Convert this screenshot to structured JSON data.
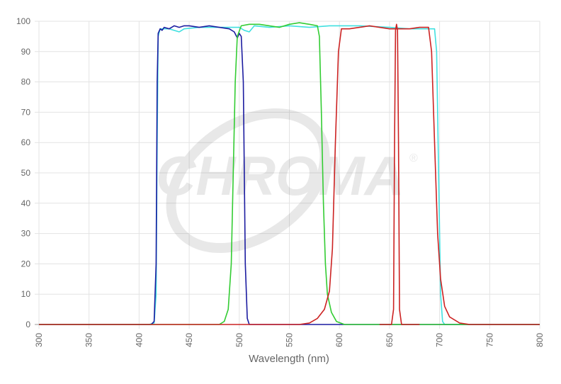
{
  "chart_data": {
    "type": "line",
    "title": "",
    "xlabel": "Wavelength (nm)",
    "ylabel": "",
    "xlim": [
      300,
      800
    ],
    "ylim": [
      0,
      100
    ],
    "xticks": [
      300,
      350,
      400,
      450,
      500,
      550,
      600,
      650,
      700,
      750,
      800
    ],
    "yticks": [
      0,
      10,
      20,
      30,
      40,
      50,
      60,
      70,
      80,
      90,
      100
    ],
    "grid": true,
    "legend": "none",
    "watermark": "CHROMA®",
    "series": [
      {
        "color": "#40e0e0",
        "points": [
          [
            300,
            0
          ],
          [
            410,
            0
          ],
          [
            415,
            0.5
          ],
          [
            417,
            10
          ],
          [
            418,
            60
          ],
          [
            419,
            95
          ],
          [
            421,
            97.5
          ],
          [
            430,
            97.5
          ],
          [
            440,
            96.5
          ],
          [
            445,
            97.5
          ],
          [
            460,
            98
          ],
          [
            480,
            98
          ],
          [
            500,
            98
          ],
          [
            505,
            97
          ],
          [
            510,
            96.5
          ],
          [
            515,
            98.5
          ],
          [
            530,
            98
          ],
          [
            550,
            98.5
          ],
          [
            570,
            98
          ],
          [
            590,
            98.5
          ],
          [
            620,
            98.5
          ],
          [
            650,
            98
          ],
          [
            670,
            97.5
          ],
          [
            690,
            97.5
          ],
          [
            695,
            97.5
          ],
          [
            697,
            90
          ],
          [
            699,
            50
          ],
          [
            701,
            10
          ],
          [
            703,
            1
          ],
          [
            705,
            0
          ],
          [
            800,
            0
          ]
        ]
      },
      {
        "color": "#1c1ca0",
        "points": [
          [
            300,
            0
          ],
          [
            412,
            0
          ],
          [
            415,
            1
          ],
          [
            417,
            20
          ],
          [
            418,
            80
          ],
          [
            419,
            96
          ],
          [
            421,
            97.5
          ],
          [
            423,
            97
          ],
          [
            425,
            98
          ],
          [
            430,
            97.5
          ],
          [
            435,
            98.5
          ],
          [
            440,
            98
          ],
          [
            445,
            98.5
          ],
          [
            450,
            98.5
          ],
          [
            460,
            98
          ],
          [
            470,
            98.5
          ],
          [
            480,
            98
          ],
          [
            490,
            97.5
          ],
          [
            495,
            96.5
          ],
          [
            498,
            94.5
          ],
          [
            500,
            96
          ],
          [
            502,
            95
          ],
          [
            504,
            80
          ],
          [
            505,
            50
          ],
          [
            506,
            20
          ],
          [
            508,
            2
          ],
          [
            510,
            0
          ],
          [
            800,
            0
          ]
        ]
      },
      {
        "color": "#33cc33",
        "points": [
          [
            300,
            0
          ],
          [
            480,
            0
          ],
          [
            485,
            1
          ],
          [
            489,
            5
          ],
          [
            492,
            20
          ],
          [
            494,
            50
          ],
          [
            496,
            80
          ],
          [
            498,
            95
          ],
          [
            502,
            98.5
          ],
          [
            510,
            99
          ],
          [
            520,
            99
          ],
          [
            530,
            98.5
          ],
          [
            540,
            98
          ],
          [
            550,
            99
          ],
          [
            560,
            99.5
          ],
          [
            570,
            99
          ],
          [
            578,
            98.5
          ],
          [
            580,
            95
          ],
          [
            582,
            70
          ],
          [
            584,
            40
          ],
          [
            586,
            20
          ],
          [
            588,
            10
          ],
          [
            592,
            4
          ],
          [
            597,
            1
          ],
          [
            605,
            0
          ],
          [
            800,
            0
          ]
        ]
      },
      {
        "color": "#cc2222",
        "points": [
          [
            300,
            0
          ],
          [
            560,
            0
          ],
          [
            570,
            0.5
          ],
          [
            578,
            2
          ],
          [
            585,
            5
          ],
          [
            590,
            11
          ],
          [
            593,
            25
          ],
          [
            596,
            60
          ],
          [
            599,
            90
          ],
          [
            602,
            97.5
          ],
          [
            610,
            97.5
          ],
          [
            620,
            98
          ],
          [
            630,
            98.5
          ],
          [
            640,
            98
          ],
          [
            650,
            97.5
          ],
          [
            670,
            97.5
          ],
          [
            680,
            98
          ],
          [
            689,
            98
          ],
          [
            692,
            90
          ],
          [
            695,
            60
          ],
          [
            698,
            30
          ],
          [
            701,
            15
          ],
          [
            705,
            6
          ],
          [
            710,
            2.5
          ],
          [
            720,
            0.5
          ],
          [
            730,
            0
          ],
          [
            800,
            0
          ]
        ]
      },
      {
        "color": "#cc2222",
        "points": [
          [
            640,
            0
          ],
          [
            652,
            0
          ],
          [
            654,
            5
          ],
          [
            655,
            60
          ],
          [
            656,
            97
          ],
          [
            657,
            99
          ],
          [
            658,
            97
          ],
          [
            659,
            60
          ],
          [
            660,
            5
          ],
          [
            662,
            0
          ],
          [
            680,
            0
          ]
        ]
      }
    ]
  }
}
